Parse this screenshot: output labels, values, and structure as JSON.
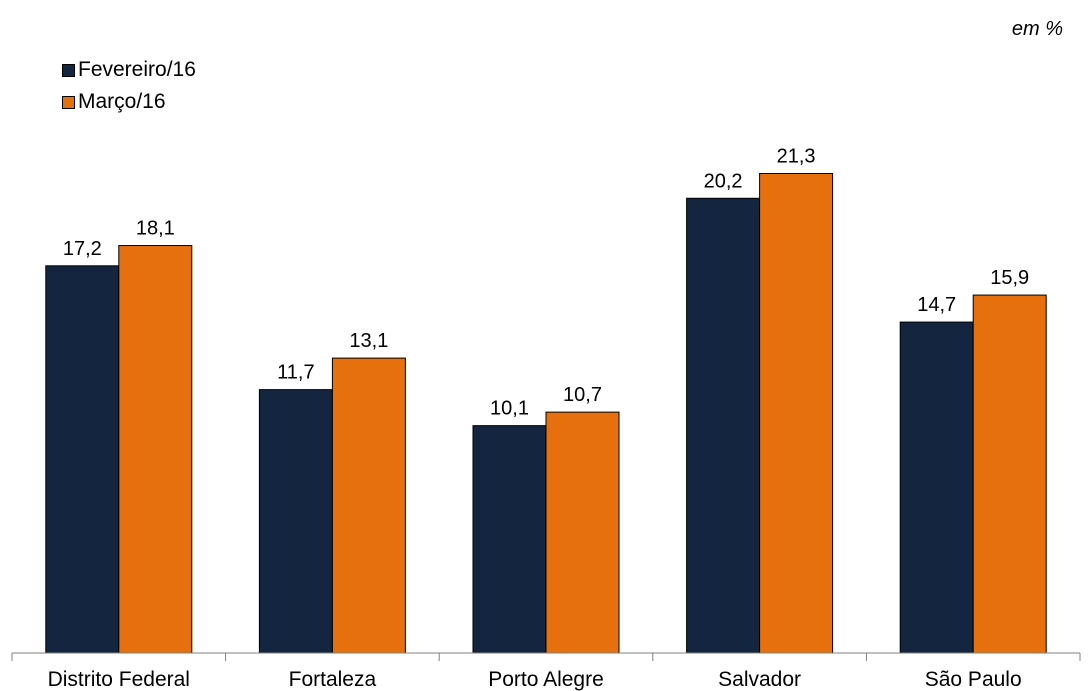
{
  "chart_data": {
    "type": "bar",
    "unit_note": "em %",
    "categories": [
      "Distrito Federal",
      "Fortaleza",
      "Porto Alegre",
      "Salvador",
      "São Paulo"
    ],
    "series": [
      {
        "name": "Fevereiro/16",
        "color": "#14253f",
        "values": [
          17.2,
          11.7,
          10.1,
          20.2,
          14.7
        ],
        "labels": [
          "17,2",
          "11,7",
          "10,1",
          "20,2",
          "14,7"
        ]
      },
      {
        "name": "Março/16",
        "color": "#e5700d",
        "values": [
          18.1,
          13.1,
          10.7,
          21.3,
          15.9
        ],
        "labels": [
          "18,1",
          "13,1",
          "10,7",
          "21,3",
          "15,9"
        ]
      }
    ],
    "ylim": [
      0,
      26.12
    ],
    "grid": false,
    "legend_position": "top-left"
  }
}
